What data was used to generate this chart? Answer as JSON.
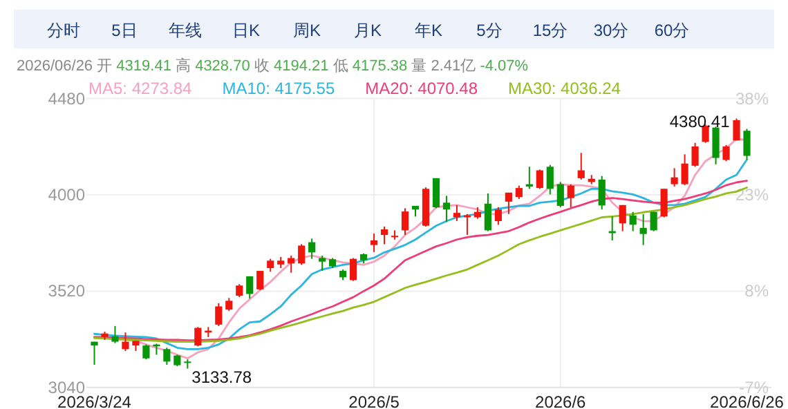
{
  "chart_data": {
    "type": "candlestick",
    "subtitle": "2026/06/26 开 4319.41 高 4328.70 收 4194.21 低 4175.38 量 2.41亿 -4.07%",
    "categories": [
      "2026/3/24",
      null,
      null,
      null,
      null,
      null,
      null,
      null,
      null,
      null,
      null,
      null,
      null,
      null,
      null,
      null,
      null,
      null,
      null,
      null,
      null,
      null,
      null,
      null,
      null,
      null,
      null,
      "2026/5",
      null,
      null,
      null,
      null,
      null,
      null,
      null,
      null,
      null,
      null,
      null,
      null,
      null,
      null,
      null,
      null,
      null,
      "2026/6",
      null,
      null,
      null,
      null,
      null,
      null,
      null,
      null,
      null,
      null,
      null,
      null,
      null,
      null,
      null,
      null,
      null,
      "2026/6/26"
    ],
    "ohlc": [
      [
        3268,
        3268,
        3153,
        3249
      ],
      [
        3291,
        3318,
        3277,
        3309
      ],
      [
        3295,
        3346,
        3261,
        3268
      ],
      [
        3231,
        3314,
        3222,
        3268
      ],
      [
        3249,
        3272,
        3222,
        3272
      ],
      [
        3249,
        3254,
        3180,
        3185
      ],
      [
        3254,
        3258,
        3203,
        3245
      ],
      [
        3231,
        3238,
        3153,
        3169
      ],
      [
        3199,
        3203,
        3146,
        3151
      ],
      [
        3169,
        3180,
        3133.78,
        3164
      ],
      [
        3249,
        3341,
        3245,
        3337
      ],
      [
        3314,
        3341,
        3291,
        3323
      ],
      [
        3353,
        3460,
        3346,
        3444
      ],
      [
        3428,
        3486,
        3421,
        3472
      ],
      [
        3497,
        3555,
        3490,
        3548
      ],
      [
        3594,
        3594,
        3483,
        3506
      ],
      [
        3529,
        3621,
        3525,
        3621
      ],
      [
        3635,
        3681,
        3617,
        3672
      ],
      [
        3653,
        3690,
        3635,
        3672
      ],
      [
        3658,
        3697,
        3612,
        3685
      ],
      [
        3658,
        3754,
        3651,
        3747
      ],
      [
        3764,
        3782,
        3681,
        3713
      ],
      [
        3685,
        3697,
        3621,
        3667
      ],
      [
        3679,
        3685,
        3635,
        3644
      ],
      [
        3621,
        3628,
        3575,
        3589
      ],
      [
        3575,
        3685,
        3571,
        3681
      ],
      [
        3704,
        3708,
        3658,
        3674
      ],
      [
        3750,
        3807,
        3715,
        3773
      ],
      [
        3800,
        3842,
        3754,
        3828
      ],
      [
        3789,
        3823,
        3777,
        3796
      ],
      [
        3823,
        3933,
        3800,
        3917
      ],
      [
        3945,
        3945,
        3892,
        3927
      ],
      [
        3846,
        4037,
        3842,
        4030
      ],
      [
        4083,
        4083,
        3933,
        3938
      ],
      [
        3961,
        3995,
        3865,
        3927
      ],
      [
        3888,
        3949,
        3869,
        3910
      ],
      [
        3888,
        3904,
        3800,
        3897
      ],
      [
        3888,
        3938,
        3881,
        3915
      ],
      [
        3956,
        4007,
        3819,
        3823
      ],
      [
        3869,
        3938,
        3851,
        3927
      ],
      [
        3966,
        4011,
        3904,
        4011
      ],
      [
        3989,
        4046,
        3979,
        4034
      ],
      [
        4053,
        4140,
        4030,
        4041
      ],
      [
        4034,
        4126,
        4030,
        4122
      ],
      [
        4140,
        4149,
        4002,
        4030
      ],
      [
        4053,
        4064,
        3938,
        3945
      ],
      [
        3984,
        4053,
        3938,
        4046
      ],
      [
        4083,
        4209,
        4076,
        4122
      ],
      [
        4064,
        4099,
        4053,
        4080
      ],
      [
        4076,
        4094,
        3927,
        3947
      ],
      [
        3819,
        3892,
        3773,
        3809
      ],
      [
        3858,
        3949,
        3819,
        3949
      ],
      [
        3897,
        3915,
        3819,
        3851
      ],
      [
        3835,
        3904,
        3750,
        3805
      ],
      [
        3915,
        3915,
        3819,
        3823
      ],
      [
        3892,
        4030,
        3888,
        4030
      ],
      [
        4053,
        4133,
        4041,
        4087
      ],
      [
        4053,
        4202,
        4048,
        4156
      ],
      [
        4145,
        4259,
        4140,
        4241
      ],
      [
        4264,
        4351,
        4259,
        4344
      ],
      [
        4335,
        4340,
        4152,
        4184
      ],
      [
        4174,
        4248,
        4168,
        4241
      ],
      [
        4271,
        4380.41,
        4271,
        4372
      ],
      [
        4319.41,
        4328.7,
        4175.38,
        4194.21
      ]
    ],
    "colors": [
      "#079607",
      "#f0160e",
      "#079607",
      "#f0160e",
      "#f0160e",
      "#079607",
      "#079607",
      "#079607",
      "#079607",
      "#079607",
      "#f0160e",
      "#f0160e",
      "#f0160e",
      "#f0160e",
      "#f0160e",
      "#079607",
      "#f0160e",
      "#f0160e",
      "#f0160e",
      "#f0160e",
      "#f0160e",
      "#079607",
      "#079607",
      "#079607",
      "#079607",
      "#f0160e",
      "#079607",
      "#f0160e",
      "#f0160e",
      "#f0160e",
      "#f0160e",
      "#079607",
      "#f0160e",
      "#079607",
      "#079607",
      "#f0160e",
      "#f0160e",
      "#f0160e",
      "#079607",
      "#f0160e",
      "#f0160e",
      "#f0160e",
      "#079607",
      "#f0160e",
      "#079607",
      "#079607",
      "#f0160e",
      "#f0160e",
      "#f0160e",
      "#079607",
      "#079607",
      "#f0160e",
      "#079607",
      "#079607",
      "#079607",
      "#f0160e",
      "#f0160e",
      "#f0160e",
      "#f0160e",
      "#f0160e",
      "#079607",
      "#f0160e",
      "#f0160e",
      "#079607"
    ],
    "series": [
      {
        "name": "MA5: 4273.84",
        "type": "line",
        "color": "#f7a1bd",
        "values": [
          3291,
          3286,
          3281,
          3277,
          3272,
          3254,
          3238,
          3222,
          3203,
          3185,
          3215,
          3231,
          3284,
          3364,
          3433,
          3479,
          3525,
          3566,
          3617,
          3663,
          3686,
          3697,
          3686,
          3674,
          3663,
          3658,
          3651,
          3667,
          3697,
          3743,
          3800,
          3835,
          3881,
          3938,
          3945,
          3949,
          3938,
          3927,
          3904,
          3904,
          3920,
          3947,
          3956,
          3995,
          4041,
          4053,
          4048,
          4048,
          4041,
          4030,
          3961,
          3915,
          3888,
          3869,
          3869,
          3904,
          3938,
          3995,
          4099,
          4168,
          4202,
          4232,
          4278,
          4273.84
        ]
      },
      {
        "name": "MA10: 4175.55",
        "type": "line",
        "color": "#2cb5de",
        "values": [
          3307,
          3302,
          3298,
          3295,
          3293,
          3291,
          3284,
          3261,
          3238,
          3231,
          3231,
          3238,
          3254,
          3284,
          3330,
          3364,
          3369,
          3405,
          3444,
          3502,
          3548,
          3605,
          3628,
          3640,
          3651,
          3658,
          3674,
          3686,
          3713,
          3731,
          3750,
          3777,
          3812,
          3846,
          3869,
          3888,
          3897,
          3904,
          3920,
          3931,
          3938,
          3945,
          3945,
          3961,
          3966,
          3972,
          3989,
          4007,
          4030,
          4030,
          4018,
          4011,
          4002,
          3984,
          3961,
          3949,
          3949,
          3956,
          3972,
          3989,
          4030,
          4076,
          4099,
          4175.55
        ]
      },
      {
        "name": "MA20: 4070.48",
        "type": "line",
        "color": "#ec3d78",
        "values": [
          3291,
          3291,
          3288,
          3286,
          3284,
          3281,
          3279,
          3277,
          3277,
          3275,
          3275,
          3277,
          3279,
          3284,
          3291,
          3300,
          3314,
          3330,
          3348,
          3369,
          3387,
          3405,
          3426,
          3444,
          3467,
          3490,
          3520,
          3548,
          3582,
          3628,
          3674,
          3697,
          3720,
          3743,
          3759,
          3777,
          3789,
          3796,
          3800,
          3809,
          3819,
          3839,
          3862,
          3881,
          3899,
          3915,
          3933,
          3949,
          3966,
          3979,
          3984,
          3979,
          3972,
          3966,
          3961,
          3961,
          3970,
          3979,
          3993,
          4007,
          4025,
          4048,
          4062,
          4070.48
        ]
      },
      {
        "name": "MA30: 4036.24",
        "type": "line",
        "color": "#95bd1b",
        "values": [
          3286,
          3284,
          3281,
          3279,
          3277,
          3275,
          3272,
          3270,
          3268,
          3268,
          3268,
          3270,
          3272,
          3277,
          3284,
          3295,
          3307,
          3323,
          3337,
          3350,
          3364,
          3380,
          3394,
          3408,
          3421,
          3438,
          3451,
          3467,
          3490,
          3513,
          3536,
          3552,
          3566,
          3582,
          3598,
          3612,
          3628,
          3651,
          3674,
          3697,
          3725,
          3754,
          3773,
          3791,
          3807,
          3823,
          3839,
          3855,
          3871,
          3888,
          3892,
          3897,
          3904,
          3913,
          3920,
          3927,
          3938,
          3949,
          3963,
          3979,
          3991,
          4007,
          4016,
          4036.24
        ]
      }
    ],
    "ylim": [
      3040,
      4480
    ],
    "yticks": [
      3040,
      3520,
      4000,
      4480
    ],
    "y2lim": [
      -7,
      38
    ],
    "y2ticks": [
      {
        "value": -7,
        "label": "-7%"
      },
      {
        "value": 8,
        "label": "8%"
      },
      {
        "value": 23,
        "label": "23%"
      },
      {
        "value": 38,
        "label": "38%"
      }
    ],
    "grid": true,
    "legend": "top left",
    "annotations": [
      "分时",
      "5日",
      "年线",
      "日K",
      "周K",
      "月K",
      "年K",
      "5分",
      "15分",
      "30分",
      "60分",
      "4380.41",
      "3133.78"
    ]
  }
}
